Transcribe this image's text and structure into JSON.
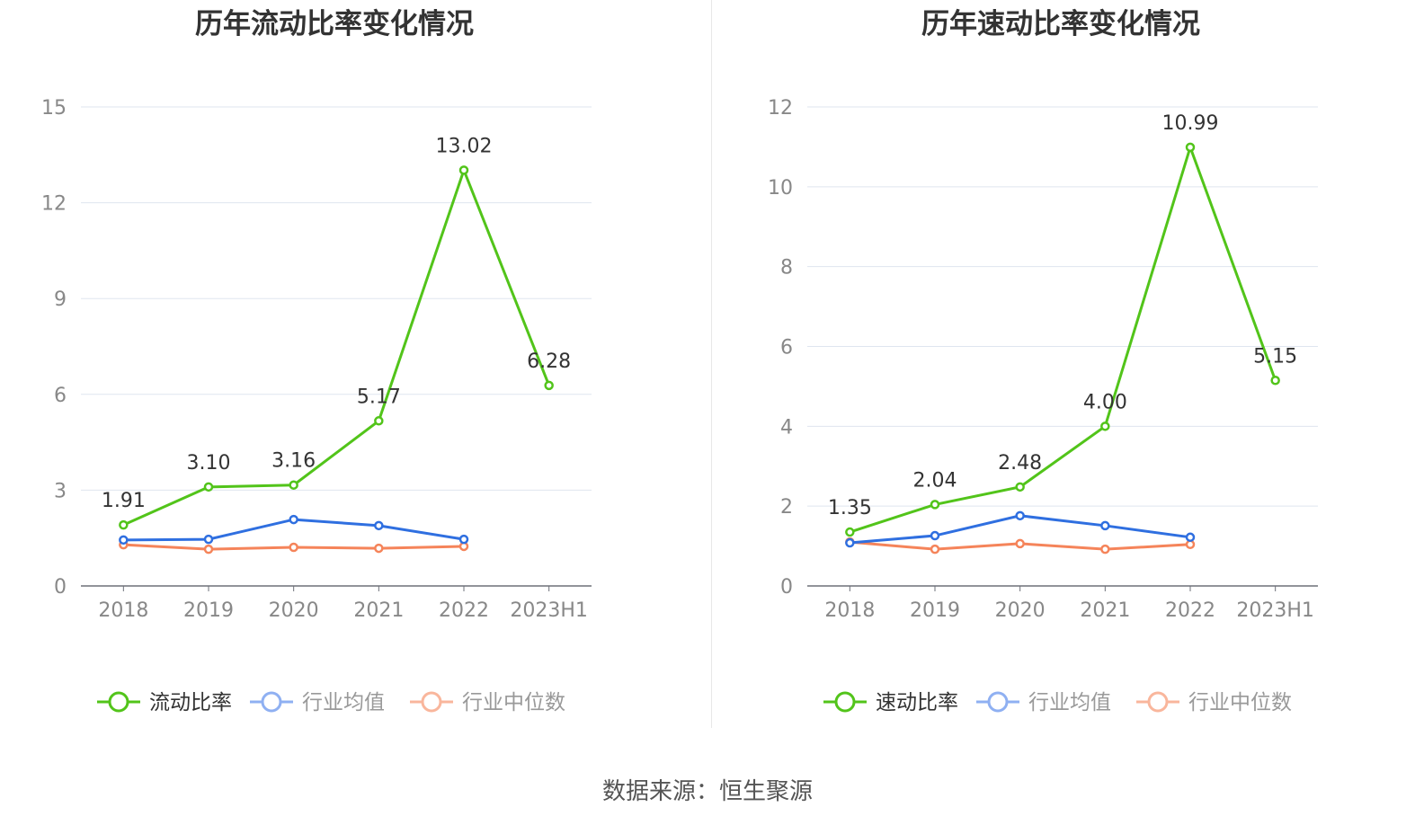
{
  "source": "数据来源：恒生聚源",
  "chart_data": [
    {
      "type": "line",
      "title": "历年流动比率变化情况",
      "categories": [
        "2018",
        "2019",
        "2020",
        "2021",
        "2022",
        "2023H1"
      ],
      "ylim": [
        0,
        15
      ],
      "yticks": [
        0,
        3,
        6,
        9,
        12,
        15
      ],
      "grid": true,
      "legend_position": "bottom",
      "series": [
        {
          "name": "流动比率",
          "color": "#52c41a",
          "values": [
            1.91,
            3.1,
            3.16,
            5.17,
            13.02,
            6.28
          ],
          "labels": [
            "1.91",
            "3.10",
            "3.16",
            "5.17",
            "13.02",
            "6.28"
          ]
        },
        {
          "name": "行业均值",
          "color": "#2f6fe0",
          "values": [
            1.44,
            1.46,
            2.08,
            1.89,
            1.46,
            null
          ]
        },
        {
          "name": "行业中位数",
          "color": "#f5845a",
          "values": [
            1.29,
            1.15,
            1.21,
            1.18,
            1.24,
            null
          ]
        }
      ]
    },
    {
      "type": "line",
      "title": "历年速动比率变化情况",
      "categories": [
        "2018",
        "2019",
        "2020",
        "2021",
        "2022",
        "2023H1"
      ],
      "ylim": [
        0,
        12
      ],
      "yticks": [
        0,
        2,
        4,
        6,
        8,
        10,
        12
      ],
      "grid": true,
      "legend_position": "bottom",
      "series": [
        {
          "name": "速动比率",
          "color": "#52c41a",
          "values": [
            1.35,
            2.04,
            2.48,
            4.0,
            10.99,
            5.15
          ],
          "labels": [
            "1.35",
            "2.04",
            "2.48",
            "4.00",
            "10.99",
            "5.15"
          ]
        },
        {
          "name": "行业均值",
          "color": "#2f6fe0",
          "values": [
            1.08,
            1.26,
            1.76,
            1.51,
            1.22,
            null
          ]
        },
        {
          "name": "行业中位数",
          "color": "#f5845a",
          "values": [
            1.1,
            0.92,
            1.06,
            0.92,
            1.04,
            null
          ]
        }
      ]
    }
  ]
}
